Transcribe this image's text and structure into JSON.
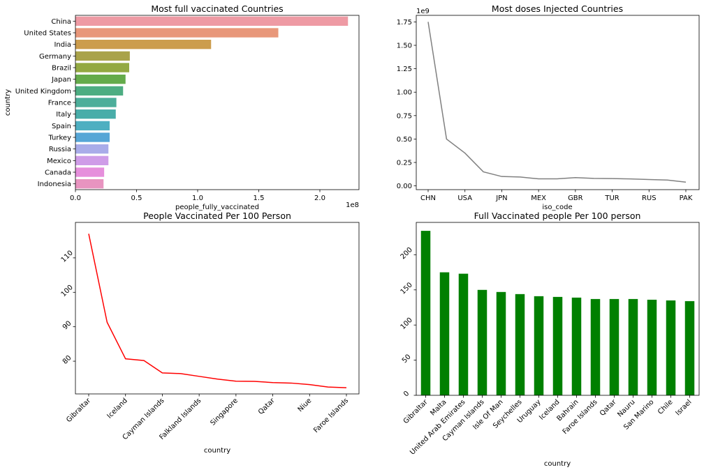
{
  "chart_data": [
    {
      "type": "bar",
      "orientation": "horizontal",
      "title": "Most full vaccinated Countries",
      "xlabel": "people_fully_vaccinated",
      "ylabel": "country",
      "x_offset_text": "1e8",
      "xlim": [
        0,
        232000000
      ],
      "xticks": [
        0,
        50000000,
        100000000,
        150000000,
        200000000
      ],
      "xtick_labels": [
        "0.0",
        "0.5",
        "1.0",
        "1.5",
        "2.0"
      ],
      "categories": [
        "China",
        "United States",
        "India",
        "Germany",
        "Brazil",
        "Japan",
        "United Kingdom",
        "France",
        "Italy",
        "Spain",
        "Turkey",
        "Russia",
        "Mexico",
        "Canada",
        "Indonesia"
      ],
      "values": [
        223000000,
        166000000,
        111000000,
        44500000,
        44000000,
        41000000,
        39000000,
        33500000,
        33000000,
        28000000,
        28000000,
        27000000,
        27000000,
        23500000,
        23000000
      ],
      "colors": [
        "#ee9aa4",
        "#e8977a",
        "#cc9d4d",
        "#a9a34a",
        "#93a942",
        "#64ab4b",
        "#4dad82",
        "#4cae9a",
        "#49ada9",
        "#4eafc1",
        "#56a6d6",
        "#a9ace9",
        "#cf9ce8",
        "#e68fdc",
        "#e894c0"
      ]
    },
    {
      "type": "line",
      "title": "Most doses Injected Countries",
      "xlabel": "iso_code",
      "ylabel": "",
      "y_offset_text": "1e9",
      "ylim": [
        -0.04,
        1.82
      ],
      "yticks": [
        0.0,
        0.25,
        0.5,
        0.75,
        1.0,
        1.25,
        1.5,
        1.75
      ],
      "ytick_labels": [
        "0.00",
        "0.25",
        "0.50",
        "0.75",
        "1.00",
        "1.25",
        "1.50",
        "1.75"
      ],
      "xtick_labels": [
        "CHN",
        "USA",
        "JPN",
        "MEX",
        "GBR",
        "TUR",
        "RUS",
        "PAK"
      ],
      "xtick_positions": [
        0,
        2,
        4,
        6,
        8,
        10,
        12,
        14
      ],
      "x": [
        0,
        1,
        2,
        3,
        4,
        5,
        6,
        7,
        8,
        9,
        10,
        11,
        12,
        13,
        14
      ],
      "values": [
        1.75,
        0.5,
        0.35,
        0.15,
        0.1,
        0.095,
        0.075,
        0.075,
        0.088,
        0.08,
        0.078,
        0.074,
        0.068,
        0.062,
        0.04
      ],
      "line_color": "#808080"
    },
    {
      "type": "line",
      "title": "People Vaccinated Per 100 Person",
      "xlabel": "country",
      "ylabel": "",
      "ylim": [
        70.5,
        120.3
      ],
      "yticks": [
        80,
        90,
        100,
        110
      ],
      "ytick_labels": [
        "80",
        "90",
        "100",
        "110"
      ],
      "xtick_labels": [
        "Gibraltar",
        "Iceland",
        "Cayman Islands",
        "Falkland Islands",
        "Singapore",
        "Qatar",
        "Niue",
        "Faroe Islands"
      ],
      "xtick_positions": [
        0,
        2,
        4,
        6,
        8,
        10,
        12,
        14
      ],
      "x": [
        0,
        1,
        2,
        3,
        4,
        5,
        6,
        7,
        8,
        9,
        10,
        11,
        12,
        13,
        14
      ],
      "values": [
        117,
        91.3,
        80.7,
        80.2,
        76.6,
        76.4,
        75.6,
        74.8,
        74.2,
        74.15,
        73.8,
        73.65,
        73.2,
        72.5,
        72.3
      ],
      "line_color": "#ff0000"
    },
    {
      "type": "bar",
      "title": "Full Vaccinated people Per 100 person",
      "xlabel": "country",
      "ylabel": "",
      "ylim": [
        0,
        246
      ],
      "yticks": [
        0,
        50,
        100,
        150,
        200
      ],
      "ytick_labels": [
        "0",
        "50",
        "100",
        "150",
        "200"
      ],
      "categories": [
        "Gibraltar",
        "Malta",
        "United Arab Emirates",
        "Cayman Islands",
        "Isle Of Man",
        "Seychelles",
        "Uruguay",
        "Iceland",
        "Bahrain",
        "Faroe Islands",
        "Qatar",
        "Nauru",
        "San Marino",
        "Chile",
        "Israel"
      ],
      "values": [
        234,
        175,
        173,
        150,
        147,
        144,
        141,
        140,
        139,
        137,
        137,
        137,
        136,
        135,
        134
      ],
      "bar_color": "#008000"
    }
  ]
}
